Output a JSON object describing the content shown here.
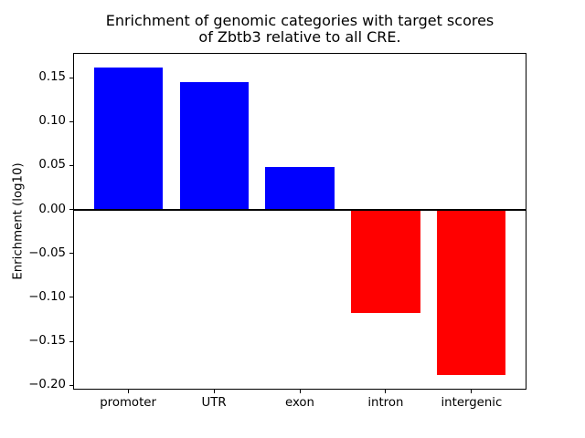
{
  "title": {
    "line1": "Enrichment of genomic categories with target scores",
    "line2": "of Zbtb3 relative to all CRE."
  },
  "chart_data": {
    "type": "bar",
    "title": "Enrichment of genomic categories with target scores\nof Zbtb3 relative to all CRE.",
    "xlabel": "",
    "ylabel": "Enrichment (log10)",
    "categories": [
      "promoter",
      "UTR",
      "exon",
      "intron",
      "intergenic"
    ],
    "values": [
      0.161,
      0.145,
      0.048,
      -0.118,
      -0.188
    ],
    "bar_colors": [
      "#0000ff",
      "#0000ff",
      "#0000ff",
      "#ff0000",
      "#ff0000"
    ],
    "positive_color": "#0000ff",
    "negative_color": "#ff0000",
    "ylim": [
      -0.205,
      0.178
    ],
    "yticks": [
      0.15,
      0.1,
      0.05,
      0.0,
      -0.05,
      -0.1,
      -0.15,
      -0.2
    ],
    "ytick_labels": [
      "0.15",
      "0.10",
      "0.05",
      "0.00",
      "−0.05",
      "−0.10",
      "−0.15",
      "−0.20"
    ],
    "zero_line": true,
    "zero_line_color": "#000000",
    "grid": false,
    "legend": null,
    "bar_width_fraction": 0.8,
    "axis_color": "#000000",
    "background_color": "#ffffff"
  }
}
